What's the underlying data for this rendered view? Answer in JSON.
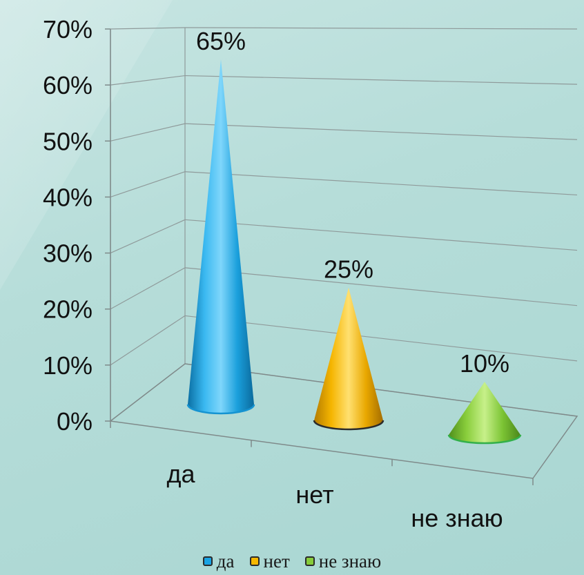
{
  "chart_data": {
    "type": "bar",
    "bar_shape": "cone-3d",
    "categories": [
      "да",
      "нет",
      "не знаю"
    ],
    "values": [
      65,
      25,
      10
    ],
    "value_labels": [
      "65%",
      "25%",
      "10%"
    ],
    "ylim": [
      0,
      70
    ],
    "y_ticks": [
      "0%",
      "10%",
      "20%",
      "30%",
      "40%",
      "50%",
      "60%",
      "70%"
    ],
    "grid": true,
    "legend_position": "bottom",
    "colors": [
      "#1aa3e3",
      "#f6b800",
      "#86cc3a"
    ],
    "legend": [
      {
        "label": "да",
        "color": "#1aa3e3"
      },
      {
        "label": "нет",
        "color": "#f6b800"
      },
      {
        "label": "не знаю",
        "color": "#86cc3a"
      }
    ]
  }
}
